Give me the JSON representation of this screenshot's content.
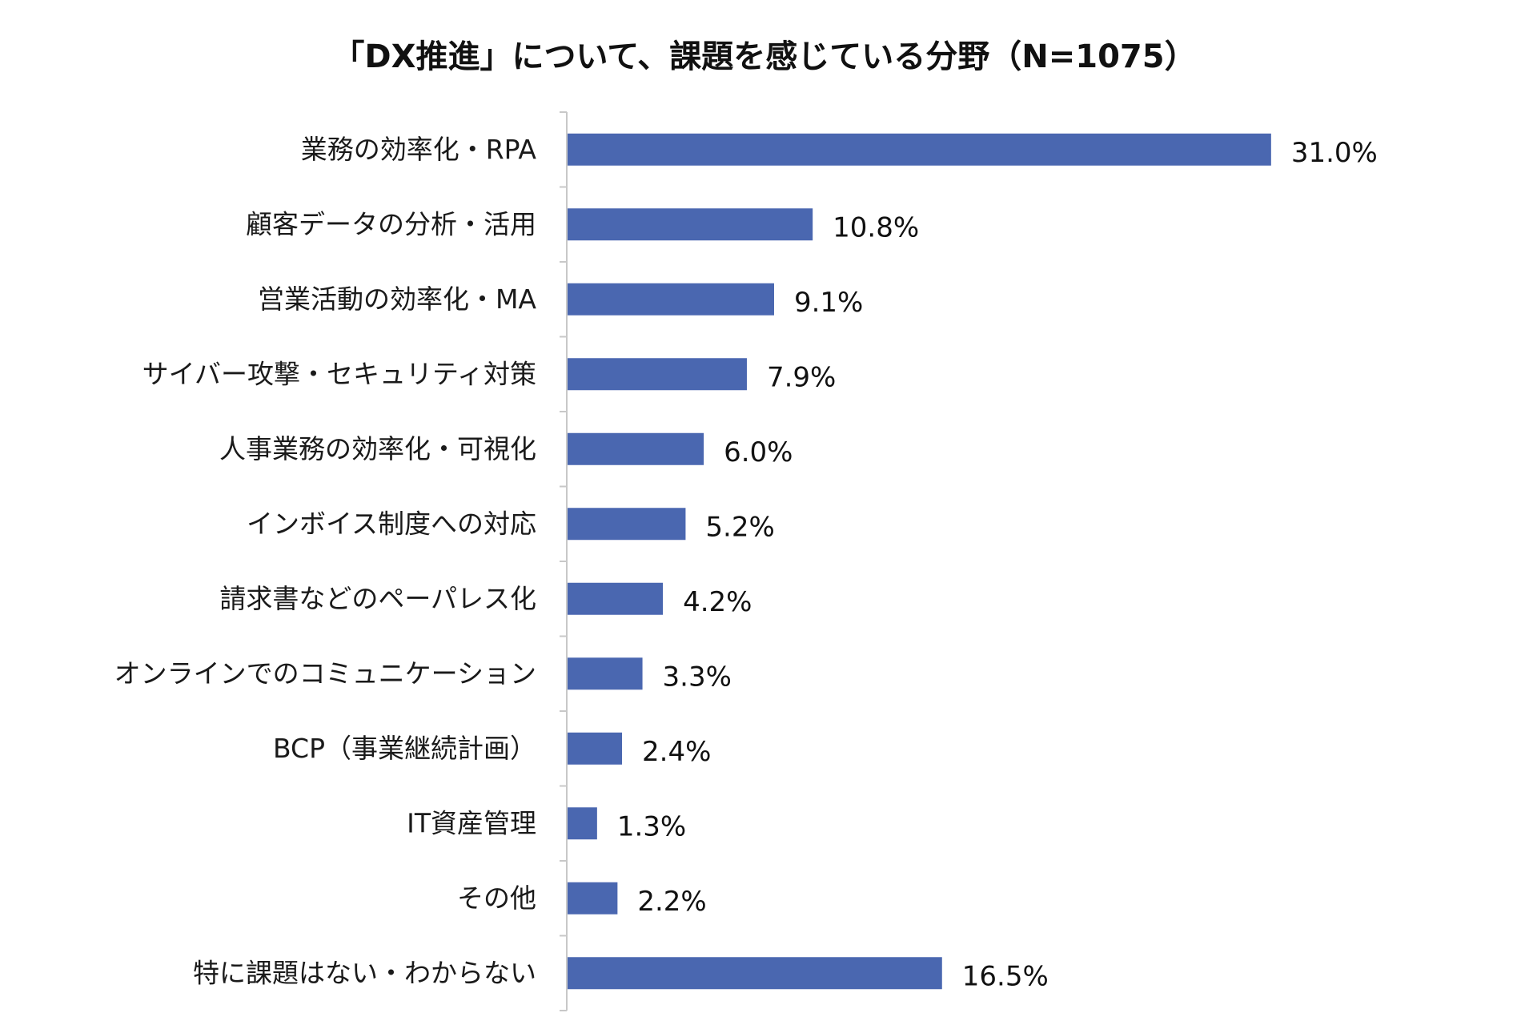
{
  "chart_data": {
    "type": "bar",
    "orientation": "horizontal",
    "title": "「DX推進」について、課題を感じている分野（N=1075）",
    "categories": [
      "業務の効率化・RPA",
      "顧客データの分析・活用",
      "営業活動の効率化・MA",
      "サイバー攻撃・セキュリティ対策",
      "人事業務の効率化・可視化",
      "インボイス制度への対応",
      "請求書などのペーパレス化",
      "オンラインでのコミュニケーション",
      "BCP（事業継続計画）",
      "IT資産管理",
      "その他",
      "特に課題はない・わからない"
    ],
    "values": [
      31.0,
      10.8,
      9.1,
      7.9,
      6.0,
      5.2,
      4.2,
      3.3,
      2.4,
      1.3,
      2.2,
      16.5
    ],
    "value_labels": [
      "31.0%",
      "10.8%",
      "9.1%",
      "7.9%",
      "6.0%",
      "5.2%",
      "4.2%",
      "3.3%",
      "2.4%",
      "1.3%",
      "2.2%",
      "16.5%"
    ],
    "unit": "%",
    "xlim": [
      0,
      35
    ],
    "xlabel": "",
    "ylabel": "",
    "grid": false,
    "legend": "none",
    "bar_color": "#4a67b0"
  }
}
